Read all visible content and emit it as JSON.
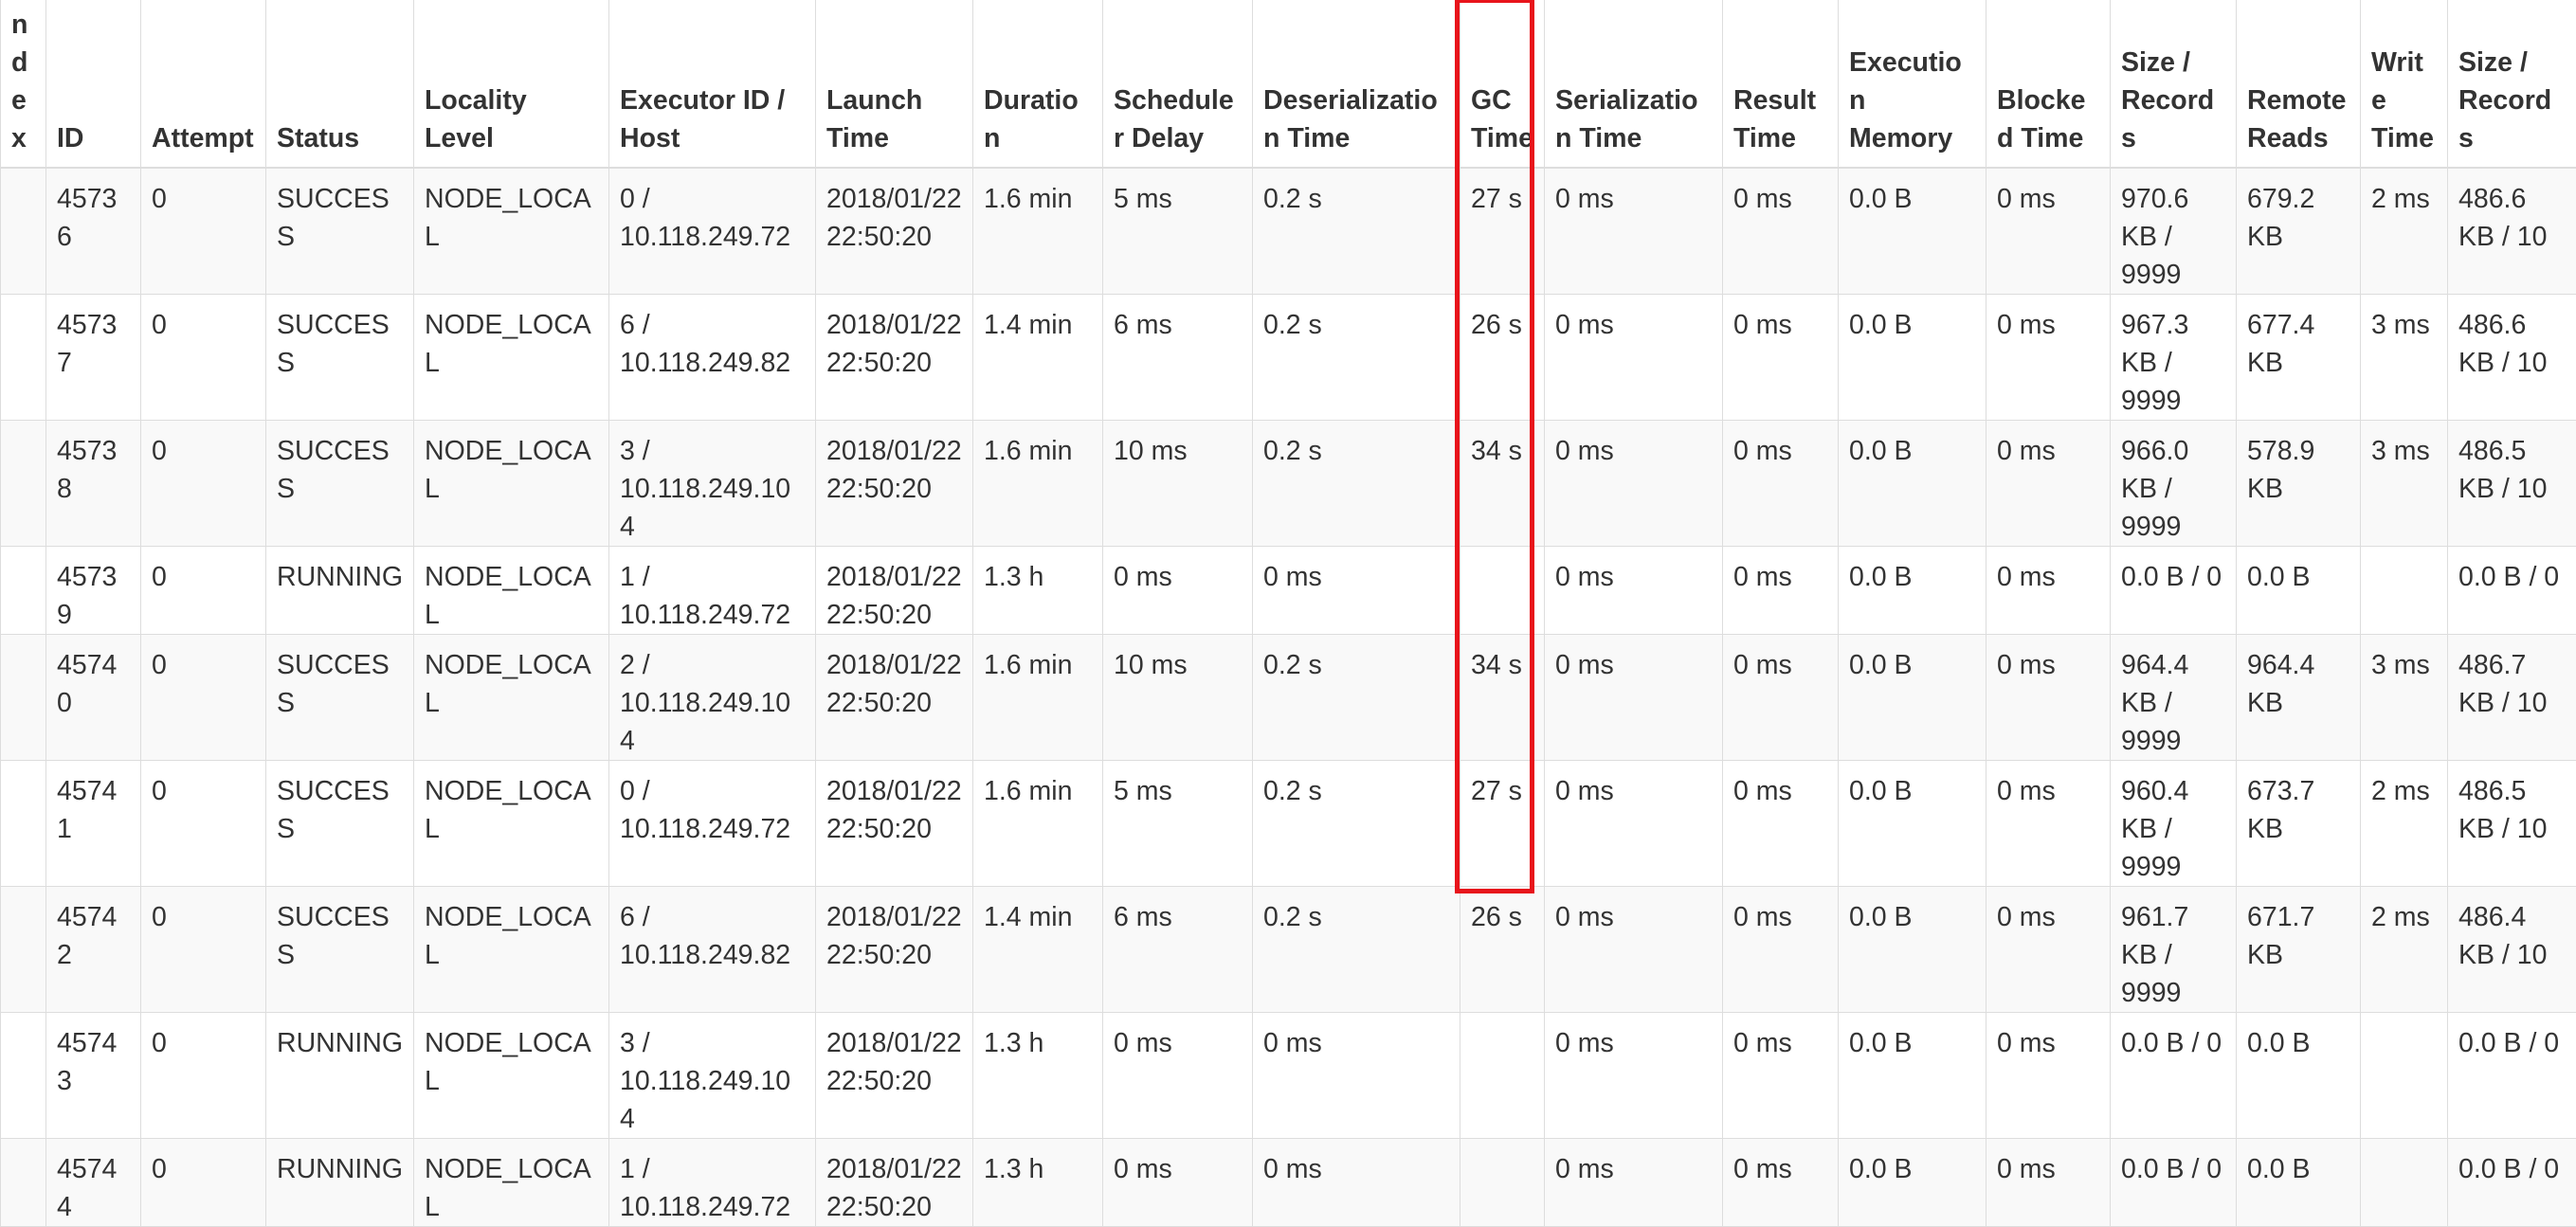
{
  "table": {
    "headers": [
      "Index",
      "ID",
      "Attempt",
      "Status",
      "Locality Level",
      "Executor ID / Host",
      "Launch Time",
      "Duration",
      "Scheduler Delay",
      "Deserialization Time",
      "GC Time",
      "Serialization Time",
      "Result Time",
      "Execution Memory",
      "Blocked Time",
      "Size / Records",
      "Remote Reads",
      "Write Time",
      "Size / Records"
    ],
    "rows": [
      [
        "",
        "45736",
        "0",
        "SUCCESS",
        "NODE_LOCAL",
        "0 / 10.118.249.72",
        "2018/01/22 22:50:20",
        "1.6 min",
        "5 ms",
        "0.2 s",
        "27 s",
        "0 ms",
        "0 ms",
        "0.0 B",
        "0 ms",
        "970.6 KB / 9999",
        "679.2 KB",
        "2 ms",
        "486.6 KB / 10"
      ],
      [
        "",
        "45737",
        "0",
        "SUCCESS",
        "NODE_LOCAL",
        "6 / 10.118.249.82",
        "2018/01/22 22:50:20",
        "1.4 min",
        "6 ms",
        "0.2 s",
        "26 s",
        "0 ms",
        "0 ms",
        "0.0 B",
        "0 ms",
        "967.3 KB / 9999",
        "677.4 KB",
        "3 ms",
        "486.6 KB / 10"
      ],
      [
        "",
        "45738",
        "0",
        "SUCCESS",
        "NODE_LOCAL",
        "3 / 10.118.249.104",
        "2018/01/22 22:50:20",
        "1.6 min",
        "10 ms",
        "0.2 s",
        "34 s",
        "0 ms",
        "0 ms",
        "0.0 B",
        "0 ms",
        "966.0 KB / 9999",
        "578.9 KB",
        "3 ms",
        "486.5 KB / 10"
      ],
      [
        "",
        "45739",
        "0",
        "RUNNING",
        "NODE_LOCAL",
        "1 / 10.118.249.72",
        "2018/01/22 22:50:20",
        "1.3 h",
        "0 ms",
        "0 ms",
        "",
        "0 ms",
        "0 ms",
        "0.0 B",
        "0 ms",
        "0.0 B / 0",
        "0.0 B",
        "",
        "0.0 B / 0"
      ],
      [
        "",
        "45740",
        "0",
        "SUCCESS",
        "NODE_LOCAL",
        "2 / 10.118.249.104",
        "2018/01/22 22:50:20",
        "1.6 min",
        "10 ms",
        "0.2 s",
        "34 s",
        "0 ms",
        "0 ms",
        "0.0 B",
        "0 ms",
        "964.4 KB / 9999",
        "964.4 KB",
        "3 ms",
        "486.7 KB / 10"
      ],
      [
        "",
        "45741",
        "0",
        "SUCCESS",
        "NODE_LOCAL",
        "0 / 10.118.249.72",
        "2018/01/22 22:50:20",
        "1.6 min",
        "5 ms",
        "0.2 s",
        "27 s",
        "0 ms",
        "0 ms",
        "0.0 B",
        "0 ms",
        "960.4 KB / 9999",
        "673.7 KB",
        "2 ms",
        "486.5 KB / 10"
      ],
      [
        "",
        "45742",
        "0",
        "SUCCESS",
        "NODE_LOCAL",
        "6 / 10.118.249.82",
        "2018/01/22 22:50:20",
        "1.4 min",
        "6 ms",
        "0.2 s",
        "26 s",
        "0 ms",
        "0 ms",
        "0.0 B",
        "0 ms",
        "961.7 KB / 9999",
        "671.7 KB",
        "2 ms",
        "486.4 KB / 10"
      ],
      [
        "",
        "45743",
        "0",
        "RUNNING",
        "NODE_LOCAL",
        "3 / 10.118.249.104",
        "2018/01/22 22:50:20",
        "1.3 h",
        "0 ms",
        "0 ms",
        "",
        "0 ms",
        "0 ms",
        "0.0 B",
        "0 ms",
        "0.0 B / 0",
        "0.0 B",
        "",
        "0.0 B / 0"
      ],
      [
        "",
        "45744",
        "0",
        "RUNNING",
        "NODE_LOCAL",
        "1 / 10.118.249.72",
        "2018/01/22 22:50:20",
        "1.3 h",
        "0 ms",
        "0 ms",
        "",
        "0 ms",
        "0 ms",
        "0.0 B",
        "0 ms",
        "0.0 B / 0",
        "0.0 B",
        "",
        "0.0 B / 0"
      ]
    ]
  },
  "highlight": {
    "column": "GC Time",
    "color": "#e8141b"
  }
}
